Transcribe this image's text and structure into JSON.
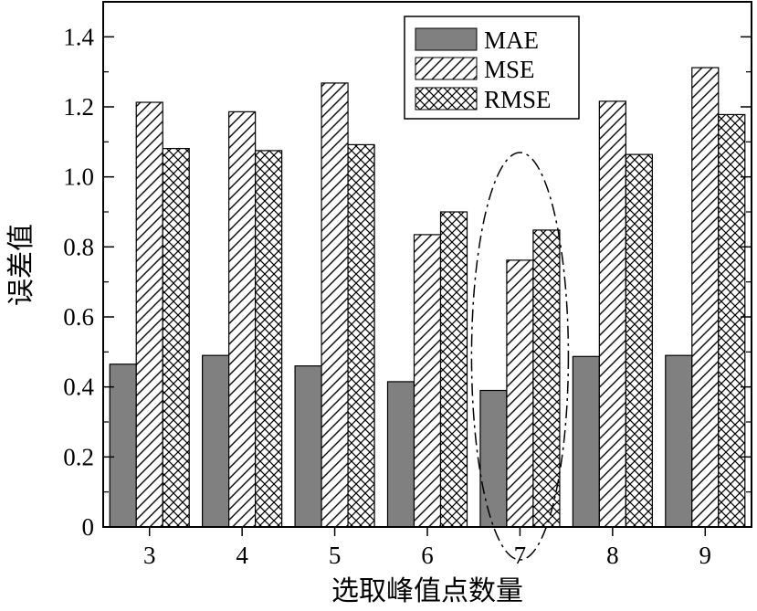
{
  "chart_data": {
    "type": "bar",
    "title": "",
    "xlabel": "选取峰值点数量",
    "ylabel": "误差值",
    "categories": [
      "3",
      "4",
      "5",
      "6",
      "7",
      "8",
      "9"
    ],
    "series": [
      {
        "name": "MAE",
        "values": [
          0.465,
          0.49,
          0.46,
          0.415,
          0.39,
          0.487,
          0.49
        ],
        "fill": "#808080",
        "pattern": "solid"
      },
      {
        "name": "MSE",
        "values": [
          1.213,
          1.186,
          1.268,
          0.835,
          0.762,
          1.216,
          1.312
        ],
        "fill": "#ffffff",
        "pattern": "diagonal"
      },
      {
        "name": "RMSE",
        "values": [
          1.081,
          1.075,
          1.092,
          0.9,
          0.848,
          1.064,
          1.178
        ],
        "fill": "#ffffff",
        "pattern": "crosshatch"
      }
    ],
    "ylim": [
      0,
      1.5
    ],
    "yticks": [
      "0",
      "0.2",
      "0.4",
      "0.6",
      "0.8",
      "1.0",
      "1.2",
      "1.4"
    ],
    "legend_position": "top-right",
    "grid": false,
    "highlight": {
      "category": "7",
      "shape": "dash-dot ellipse"
    }
  }
}
